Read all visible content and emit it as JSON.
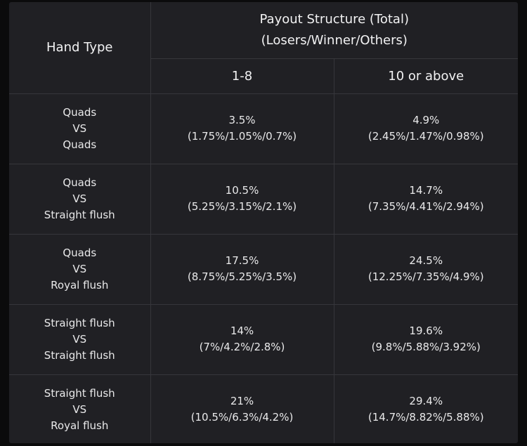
{
  "header": {
    "hand_type": "Hand Type",
    "payout_title": "Payout Structure (Total)",
    "payout_subtitle": "(Losers/Winner/Others)",
    "tiers": [
      "1-8",
      "10 or above"
    ]
  },
  "rows": [
    {
      "hand": [
        "Quads",
        "VS",
        "Quads"
      ],
      "tier1": {
        "total": "3.5%",
        "split": "(1.75%/1.05%/0.7%)"
      },
      "tier2": {
        "total": "4.9%",
        "split": "(2.45%/1.47%/0.98%)"
      }
    },
    {
      "hand": [
        "Quads",
        "VS",
        "Straight flush"
      ],
      "tier1": {
        "total": "10.5%",
        "split": "(5.25%/3.15%/2.1%)"
      },
      "tier2": {
        "total": "14.7%",
        "split": "(7.35%/4.41%/2.94%)"
      }
    },
    {
      "hand": [
        "Quads",
        "VS",
        "Royal flush"
      ],
      "tier1": {
        "total": "17.5%",
        "split": "(8.75%/5.25%/3.5%)"
      },
      "tier2": {
        "total": "24.5%",
        "split": "(12.25%/7.35%/4.9%)"
      }
    },
    {
      "hand": [
        "Straight flush",
        "VS",
        "Straight flush"
      ],
      "tier1": {
        "total": "14%",
        "split": "(7%/4.2%/2.8%)"
      },
      "tier2": {
        "total": "19.6%",
        "split": "(9.8%/5.88%/3.92%)"
      }
    },
    {
      "hand": [
        "Straight flush",
        "VS",
        "Royal flush"
      ],
      "tier1": {
        "total": "21%",
        "split": "(10.5%/6.3%/4.2%)"
      },
      "tier2": {
        "total": "29.4%",
        "split": "(14.7%/8.82%/5.88%)"
      }
    }
  ],
  "colors": {
    "background": "#0b0b0c",
    "table": "#202024",
    "border": "#36363b",
    "text": "#e9e9ea"
  }
}
